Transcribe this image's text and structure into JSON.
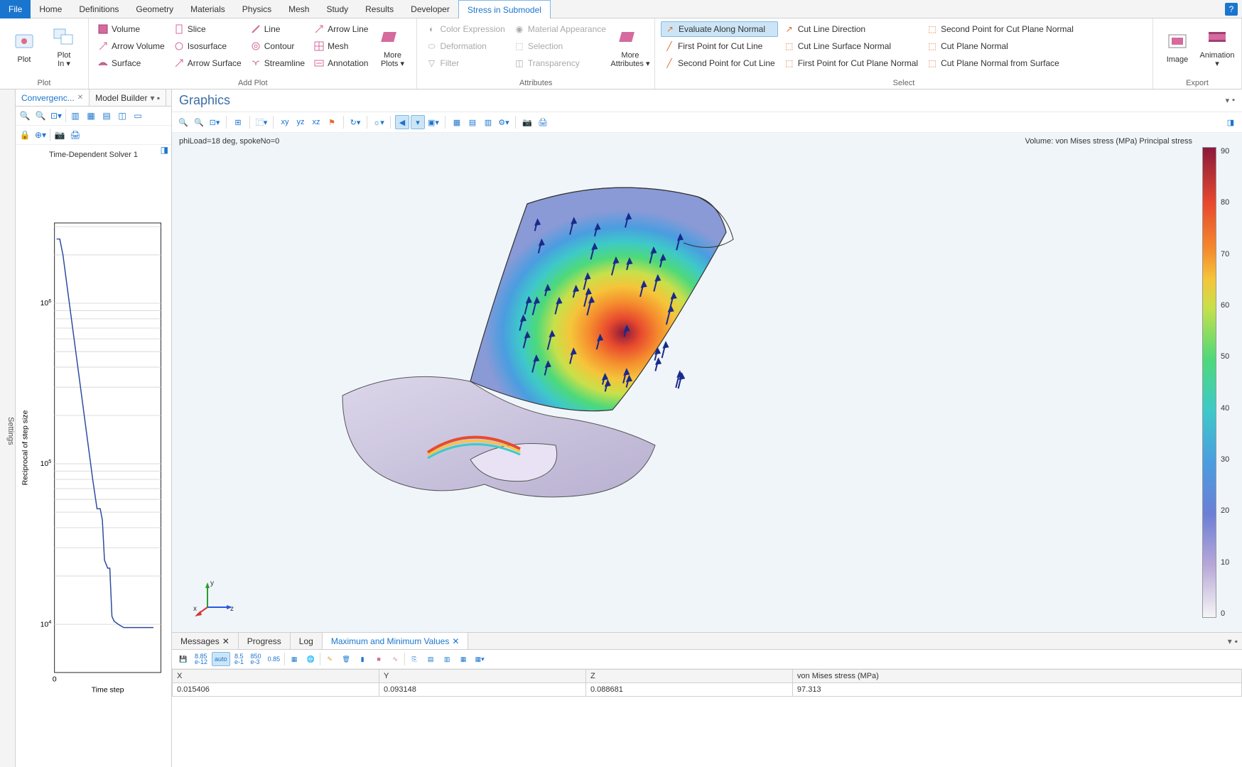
{
  "menubar": {
    "file": "File",
    "tabs": [
      "Home",
      "Definitions",
      "Geometry",
      "Materials",
      "Physics",
      "Mesh",
      "Study",
      "Results",
      "Developer"
    ],
    "active_tab": "Stress in Submodel",
    "help": "?"
  },
  "ribbon": {
    "plot_group": {
      "label": "Plot",
      "plot": "Plot",
      "plot_in": "Plot\nIn ▾"
    },
    "add_plot_group": {
      "label": "Add Plot",
      "col1": [
        "Volume",
        "Arrow Volume",
        "Surface"
      ],
      "col2": [
        "Slice",
        "Isosurface",
        "Arrow Surface"
      ],
      "col3": [
        "Line",
        "Contour",
        "Streamline"
      ],
      "col4": [
        "Arrow Line",
        "Mesh",
        "Annotation"
      ],
      "more": "More\nPlots ▾"
    },
    "attributes_group": {
      "label": "Attributes",
      "col1": [
        "Color Expression",
        "Deformation",
        "Filter"
      ],
      "col2": [
        "Material Appearance",
        "Selection",
        "Transparency"
      ],
      "more": "More\nAttributes ▾"
    },
    "select_group": {
      "label": "Select",
      "col1": [
        "Evaluate Along Normal",
        "First Point for Cut Line",
        "Second Point for Cut Line"
      ],
      "col2": [
        "Cut Line Direction",
        "Cut Line Surface Normal",
        "First Point for Cut Plane Normal"
      ],
      "col3": [
        "Second Point for Cut Plane Normal",
        "Cut Plane Normal",
        "Cut Plane Normal from Surface"
      ]
    },
    "export_group": {
      "label": "Export",
      "image": "Image",
      "animation": "Animation\n▾"
    }
  },
  "left_panel": {
    "tabs": {
      "conv": "Convergenc...",
      "model": "Model Builder"
    },
    "chart": {
      "title": "Time-Dependent Solver 1",
      "xlabel": "Time step",
      "ylabel": "Reciprocal of step size",
      "xlim": [
        0,
        10
      ],
      "ylim_exp": [
        3.7,
        6.5
      ],
      "yticks_exp": [
        4,
        5,
        6
      ],
      "line_color": "#2b4aa0",
      "background": "#ffffff",
      "grid_color": "#dcdcdc",
      "points_exp": [
        [
          0.2,
          6.4
        ],
        [
          0.5,
          6.4
        ],
        [
          0.8,
          6.3
        ],
        [
          1.2,
          6.1
        ],
        [
          1.6,
          5.9
        ],
        [
          2.0,
          5.7
        ],
        [
          2.4,
          5.5
        ],
        [
          2.8,
          5.3
        ],
        [
          3.2,
          5.1
        ],
        [
          3.6,
          4.9
        ],
        [
          4.0,
          4.72
        ],
        [
          4.3,
          4.72
        ],
        [
          4.5,
          4.65
        ],
        [
          4.7,
          4.4
        ],
        [
          5.0,
          4.35
        ],
        [
          5.2,
          4.35
        ],
        [
          5.4,
          4.05
        ],
        [
          5.6,
          4.02
        ],
        [
          6.0,
          4.0
        ],
        [
          6.5,
          3.98
        ],
        [
          7.5,
          3.98
        ],
        [
          9.3,
          3.98
        ]
      ]
    }
  },
  "graphics": {
    "title": "Graphics",
    "label_left": "phiLoad=18 deg, spokeNo=0",
    "label_right": "Volume: von Mises stress (MPa)  Principal stress",
    "colorbar": {
      "min": 0,
      "max": 90,
      "step": 10,
      "ticks": [
        "90",
        "80",
        "70",
        "60",
        "50",
        "40",
        "30",
        "20",
        "10",
        "0"
      ]
    },
    "axes": {
      "x": "x",
      "y": "y",
      "z": "z"
    }
  },
  "bottom": {
    "tabs": [
      "Messages",
      "Progress",
      "Log"
    ],
    "active_tab": "Maximum and Minimum Values",
    "toolbar_labels": [
      "8.85\ne-12",
      "auto",
      "8.5\ne-1",
      "850\ne-3",
      "0.85"
    ],
    "table": {
      "columns": [
        "X",
        "Y",
        "Z",
        "von Mises stress (MPa)"
      ],
      "rows": [
        [
          "0.015406",
          "0.093148",
          "0.088681",
          "97.313"
        ]
      ]
    }
  },
  "settings_tab": "Settings"
}
